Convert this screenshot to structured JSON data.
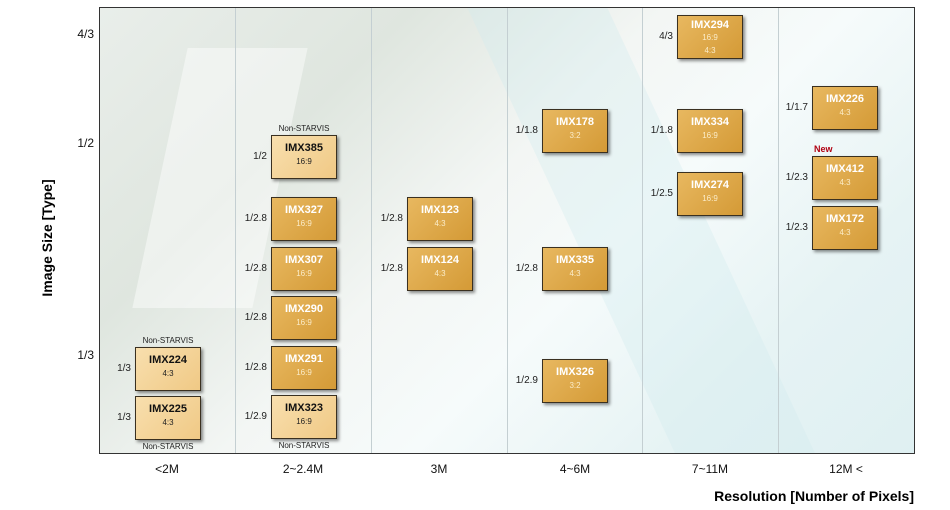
{
  "y_axis": {
    "title": "Image Size [Type]",
    "ticks": [
      "4/3",
      "1/2",
      "1/3"
    ]
  },
  "x_axis": {
    "title": "Resolution  [Number of Pixels]",
    "categories": [
      "<2M",
      "2~2.4M",
      "3M",
      "4~6M",
      "7~11M",
      "12M <"
    ]
  },
  "sensors": [
    {
      "name": "IMX224",
      "size": "1/3",
      "aspect": "4:3",
      "non_starvis": true,
      "note": "Non-STARVIS"
    },
    {
      "name": "IMX225",
      "size": "1/3",
      "aspect": "4:3",
      "non_starvis": true,
      "note": "Non-STARVIS"
    },
    {
      "name": "IMX385",
      "size": "1/2",
      "aspect": "16:9",
      "non_starvis": true,
      "note": "Non-STARVIS"
    },
    {
      "name": "IMX327",
      "size": "1/2.8",
      "aspect": "16:9"
    },
    {
      "name": "IMX307",
      "size": "1/2.8",
      "aspect": "16:9"
    },
    {
      "name": "IMX290",
      "size": "1/2.8",
      "aspect": "16:9"
    },
    {
      "name": "IMX291",
      "size": "1/2.8",
      "aspect": "16:9"
    },
    {
      "name": "IMX323",
      "size": "1/2.9",
      "aspect": "16:9",
      "non_starvis": true,
      "note": "Non-STARVIS"
    },
    {
      "name": "IMX123",
      "size": "1/2.8",
      "aspect": "4:3"
    },
    {
      "name": "IMX124",
      "size": "1/2.8",
      "aspect": "4:3"
    },
    {
      "name": "IMX178",
      "size": "1/1.8",
      "aspect": "3:2"
    },
    {
      "name": "IMX335",
      "size": "1/2.8",
      "aspect": "4:3"
    },
    {
      "name": "IMX326",
      "size": "1/2.9",
      "aspect": "3:2"
    },
    {
      "name": "IMX294",
      "size": "4/3",
      "aspect": "16:9",
      "aspect2": "4:3"
    },
    {
      "name": "IMX334",
      "size": "1/1.8",
      "aspect": "16:9"
    },
    {
      "name": "IMX274",
      "size": "1/2.5",
      "aspect": "16:9"
    },
    {
      "name": "IMX226",
      "size": "1/1.7",
      "aspect": "4:3"
    },
    {
      "name": "IMX412",
      "size": "1/2.3",
      "aspect": "4:3",
      "badge": "New"
    },
    {
      "name": "IMX172",
      "size": "1/2.3",
      "aspect": "4:3"
    }
  ]
}
